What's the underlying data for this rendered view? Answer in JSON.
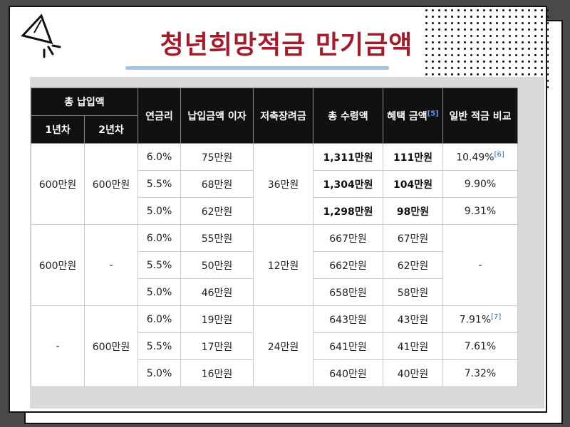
{
  "title": "청년희망적금 만기금액",
  "table": {
    "header": {
      "total_paid": "총 납입액",
      "year1": "1년차",
      "year2": "2년차",
      "rate": "연금리",
      "interest": "납입금액 이자",
      "subsidy": "저축장려금",
      "total_receive": "총 수령액",
      "benefit": "혜택 금액",
      "benefit_ref": "[5]",
      "compare": "일반 적금 비교"
    },
    "groups": [
      {
        "year1": "600만원",
        "year2": "600만원",
        "subsidy": "36만원",
        "rows": [
          {
            "rate": "6.0%",
            "interest": "75만원",
            "total": "1,311만원",
            "benefit": "111만원",
            "compare": "10.49%",
            "ref": "[6]"
          },
          {
            "rate": "5.5%",
            "interest": "68만원",
            "total": "1,304만원",
            "benefit": "104만원",
            "compare": "9.90%"
          },
          {
            "rate": "5.0%",
            "interest": "62만원",
            "total": "1,298만원",
            "benefit": "98만원",
            "compare": "9.31%"
          }
        ]
      },
      {
        "year1": "600만원",
        "year2": "-",
        "subsidy": "12만원",
        "compare": "-",
        "rows": [
          {
            "rate": "6.0%",
            "interest": "55만원",
            "total": "667만원",
            "benefit": "67만원"
          },
          {
            "rate": "5.5%",
            "interest": "50만원",
            "total": "662만원",
            "benefit": "62만원"
          },
          {
            "rate": "5.0%",
            "interest": "46만원",
            "total": "658만원",
            "benefit": "58만원"
          }
        ]
      },
      {
        "year1": "-",
        "year2": "600만원",
        "subsidy": "24만원",
        "rows": [
          {
            "rate": "6.0%",
            "interest": "19만원",
            "total": "643만원",
            "benefit": "43만원",
            "compare": "7.91%",
            "ref": "[7]"
          },
          {
            "rate": "5.5%",
            "interest": "17만원",
            "total": "641만원",
            "benefit": "41만원",
            "compare": "7.61%"
          },
          {
            "rate": "5.0%",
            "interest": "16만원",
            "total": "640만원",
            "benefit": "40만원",
            "compare": "7.32%"
          }
        ]
      }
    ]
  },
  "colors": {
    "title": "#a41c2a",
    "underline": "#a6c4e2",
    "header_bg": "#111111",
    "ref_link": "#1a6fd1"
  }
}
